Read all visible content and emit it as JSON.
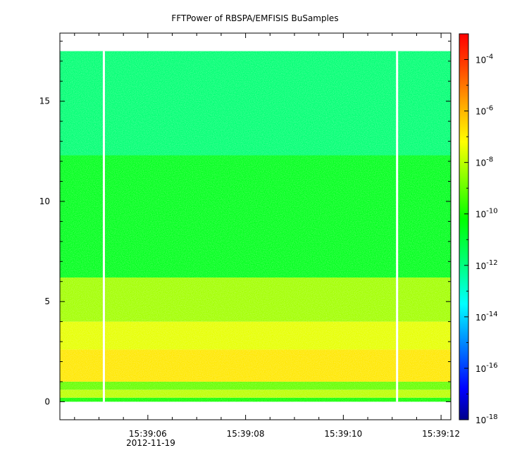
{
  "chart_data": {
    "type": "heatmap",
    "title": "FFTPower of RBSPA/EMFISIS  BuSamples",
    "xlabel": "",
    "ylabel": "",
    "x_date_label": "2012-11-19",
    "x_ticks": [
      "15:39:06",
      "15:39:08",
      "15:39:10",
      "15:39:12"
    ],
    "xlim": [
      "15:39:04.2",
      "15:39:12.2"
    ],
    "y_ticks": [
      0,
      5,
      10,
      15
    ],
    "ylim": [
      -0.9,
      18.4
    ],
    "colorbar": {
      "scale": "log",
      "range": [
        1e-18,
        0.001
      ],
      "ticks": [
        {
          "base": "10",
          "exp": "-4"
        },
        {
          "base": "10",
          "exp": "-6"
        },
        {
          "base": "10",
          "exp": "-8"
        },
        {
          "base": "10",
          "exp": "-10"
        },
        {
          "base": "10",
          "exp": "-12"
        },
        {
          "base": "10",
          "exp": "-14"
        },
        {
          "base": "10",
          "exp": "-16"
        },
        {
          "base": "10",
          "exp": "-18"
        }
      ],
      "colormap": [
        "#00008a",
        "#0000ff",
        "#00a0ff",
        "#00ffff",
        "#00ff80",
        "#00ff00",
        "#80ff00",
        "#ffff00",
        "#ffa500",
        "#ff4000",
        "#ff0000"
      ]
    },
    "data_gaps": [
      "15:39:05.1",
      "15:39:11.1"
    ],
    "spectral_bands": [
      {
        "freq_range": [
          0,
          0.2
        ],
        "log10_power": -10
      },
      {
        "freq_range": [
          0.2,
          0.6
        ],
        "log10_power": -8
      },
      {
        "freq_range": [
          0.6,
          1.0
        ],
        "log10_power": -9
      },
      {
        "freq_range": [
          1.0,
          2.6
        ],
        "log10_power": -6.8
      },
      {
        "freq_range": [
          2.6,
          4.0
        ],
        "log10_power": -7.5
      },
      {
        "freq_range": [
          4.0,
          6.2
        ],
        "log10_power": -8.3
      },
      {
        "freq_range": [
          6.2,
          12.3
        ],
        "log10_power": -10.6
      },
      {
        "freq_range": [
          12.3,
          17.5
        ],
        "log10_power": -11.8
      }
    ]
  }
}
